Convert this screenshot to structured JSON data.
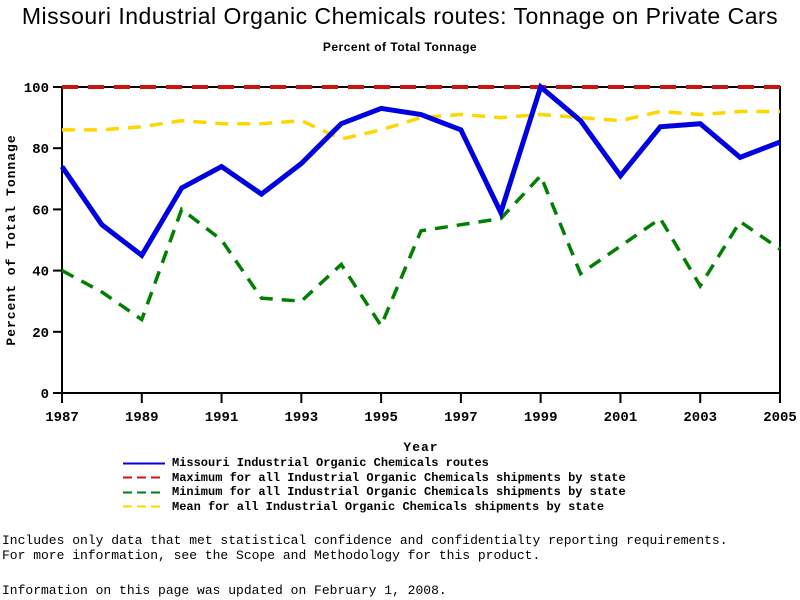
{
  "title": "Missouri Industrial Organic Chemicals routes: Tonnage on Private Cars",
  "subtitle": "Percent of Total Tonnage",
  "chart_data": {
    "type": "line",
    "x": [
      1987,
      1988,
      1989,
      1990,
      1991,
      1992,
      1993,
      1994,
      1995,
      1996,
      1997,
      1998,
      1999,
      2000,
      2001,
      2002,
      2003,
      2004,
      2005
    ],
    "x_ticks": [
      1987,
      1989,
      1991,
      1993,
      1995,
      1997,
      1999,
      2001,
      2003,
      2005
    ],
    "y_ticks": [
      0,
      20,
      40,
      60,
      80,
      100
    ],
    "ylim": [
      0,
      100
    ],
    "xlabel": "Year",
    "ylabel": "Percent of Total Tonnage",
    "grid": false,
    "legend_position": "bottom",
    "frame_color": "#000000",
    "series": [
      {
        "key": "missouri",
        "name": "Missouri Industrial Organic Chemicals routes",
        "color": "#0000E0",
        "style": "solid",
        "values": [
          74,
          55,
          45,
          67,
          74,
          65,
          75,
          88,
          93,
          91,
          86,
          59,
          100,
          89,
          71,
          87,
          88,
          77,
          82
        ]
      },
      {
        "key": "maximum",
        "name": "Maximum for all Industrial Organic Chemicals shipments by state",
        "color": "#CC1414",
        "style": "dashed",
        "values": [
          100,
          100,
          100,
          100,
          100,
          100,
          100,
          100,
          100,
          100,
          100,
          100,
          100,
          100,
          100,
          100,
          100,
          100,
          100
        ]
      },
      {
        "key": "minimum",
        "name": "Minimum for all Industrial Organic Chemicals shipments by state",
        "color": "#008000",
        "style": "dashed",
        "values": [
          40,
          33,
          24,
          60,
          50,
          31,
          30,
          42,
          22,
          53,
          55,
          57,
          71,
          39,
          48,
          57,
          35,
          56,
          47
        ]
      },
      {
        "key": "mean",
        "name": "Mean for all Industrial Organic Chemicals shipments by state",
        "color": "#FFD700",
        "style": "dashed",
        "values": [
          86,
          86,
          87,
          89,
          88,
          88,
          89,
          83,
          86,
          90,
          91,
          90,
          91,
          90,
          89,
          92,
          91,
          92,
          92
        ]
      }
    ]
  },
  "footnotes": {
    "line1": "Includes only data that met statistical confidence and confidentialty reporting requirements.",
    "line2": "For more information, see the Scope and Methodology for this product.",
    "line3": "Information on this page was updated on February 1, 2008."
  }
}
